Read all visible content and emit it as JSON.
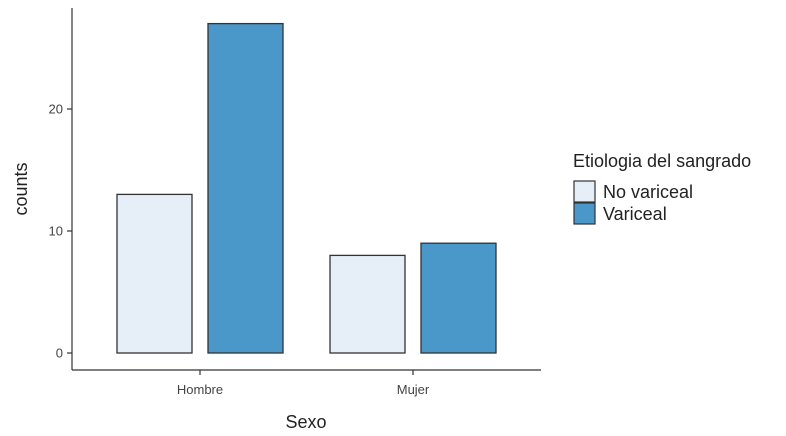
{
  "chart_data": {
    "type": "bar",
    "title": "",
    "xlabel": "Sexo",
    "ylabel": "counts",
    "categories": [
      "Hombre",
      "Mujer"
    ],
    "ylim": [
      0,
      29
    ],
    "yticks": [
      0,
      10,
      20
    ],
    "grid": false,
    "legend": {
      "title": "Etiologia del sangrado",
      "position": "right"
    },
    "series": [
      {
        "name": "No variceal",
        "values": [
          13,
          8
        ],
        "color": "#e6eef8"
      },
      {
        "name": "Variceal",
        "values": [
          27,
          9
        ],
        "color": "#4a97c9"
      }
    ],
    "bar_edge_color": "#333333"
  }
}
